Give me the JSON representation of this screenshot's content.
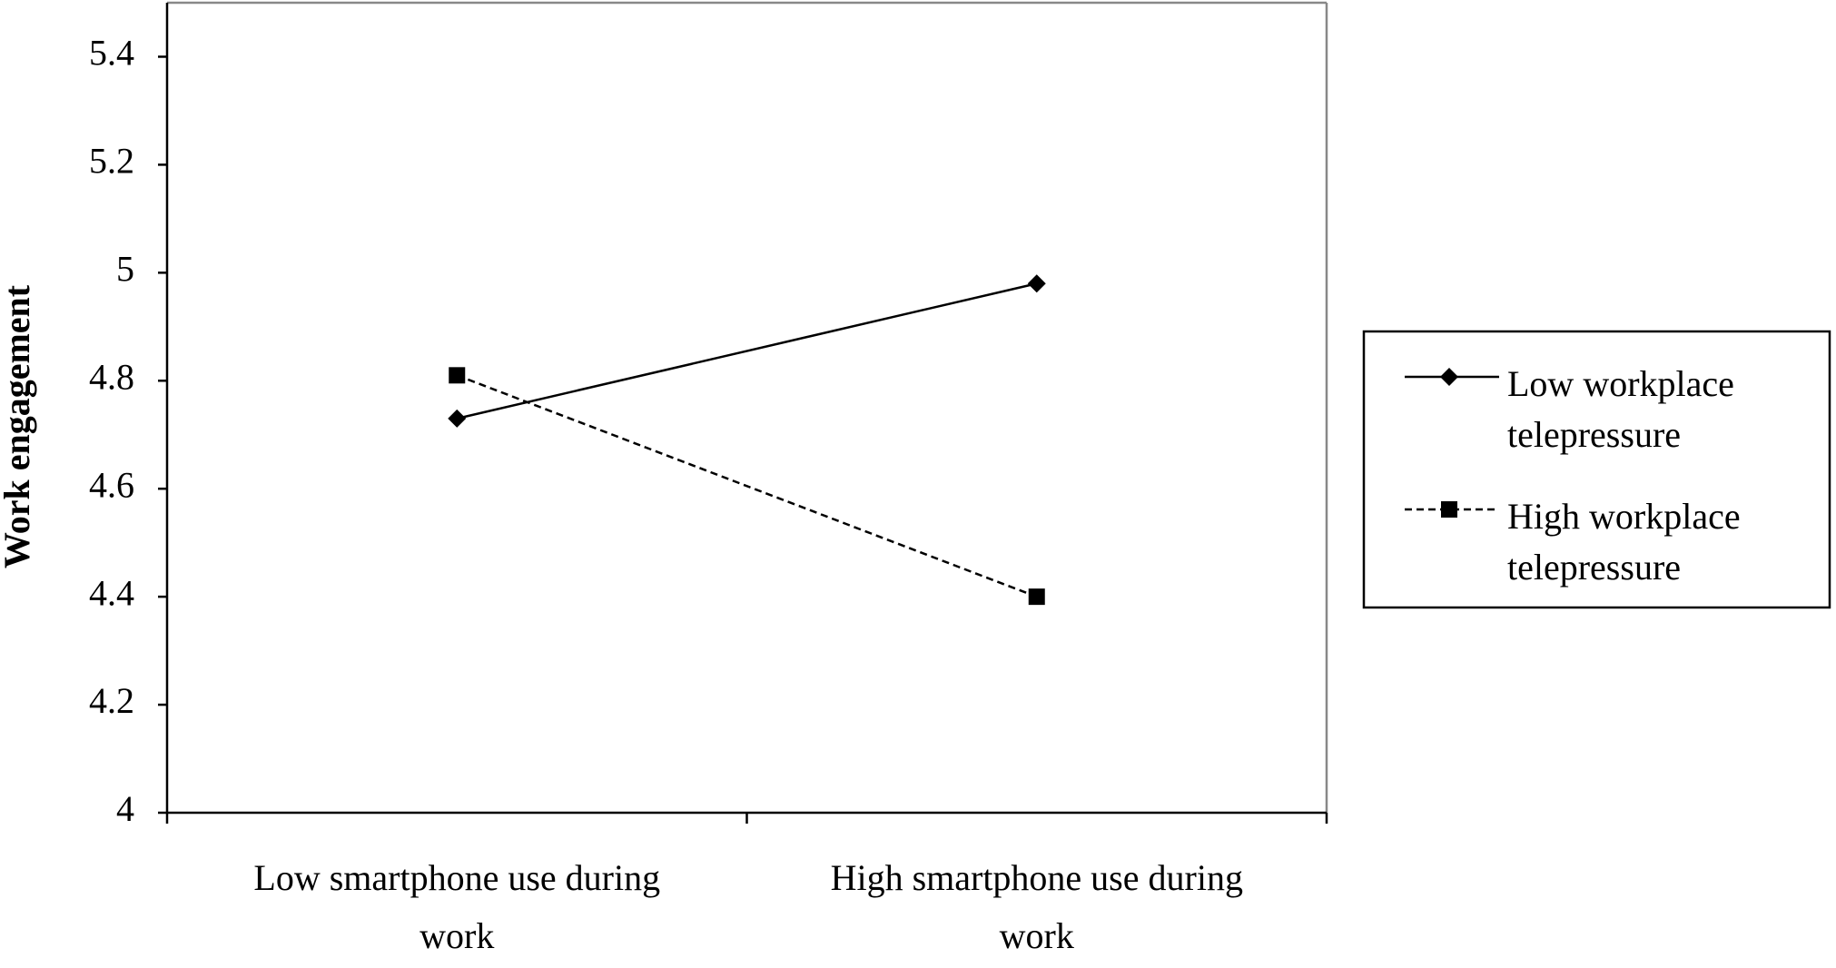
{
  "chart_data": {
    "type": "line",
    "y_label": "Work engagement",
    "categories": [
      "Low smartphone use during work",
      "High smartphone use during work"
    ],
    "series": [
      {
        "name": "Low workplace telepressure",
        "color": "#000000",
        "dash": "solid",
        "marker": "diamond",
        "values": [
          4.73,
          4.98
        ]
      },
      {
        "name": "High workplace telepressure",
        "color": "#000000",
        "dash": "dashed",
        "marker": "square",
        "values": [
          4.81,
          4.4
        ]
      }
    ],
    "ylim": [
      4,
      5.5
    ],
    "yticks": [
      4,
      4.2,
      4.4,
      4.6,
      4.8,
      5,
      5.2,
      5.4
    ],
    "grid": false,
    "legend": "right"
  }
}
